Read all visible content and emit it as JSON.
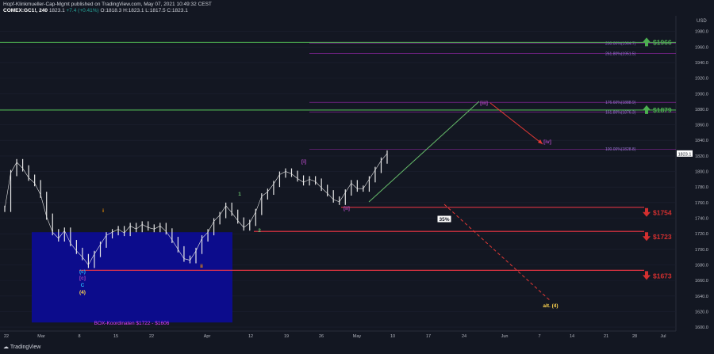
{
  "header": {
    "line1": "Hopf-Klinkmueller-Cap-Mgmt published on TradingView.com, May 07, 2021 10:49:32 CEST",
    "symbol": "COMEX:GC1!, 240",
    "last": "1823.1",
    "change": "+7.4 (+0.41%)",
    "open": "O:1818.3",
    "high": "H:1823.1",
    "low": "L:1817.5",
    "close": "C:1823.1"
  },
  "logo": "TradingView",
  "colors": {
    "background": "#131722",
    "candle": "#e6e6e6",
    "resistance": "#4caf50",
    "support": "#f23645",
    "box": "#0c0c8c",
    "fib": "#9c27b0",
    "wave_label": "#ab47bc",
    "up_arrow": "#4caf50",
    "down_arrow": "#d32f2f"
  },
  "chart_data": {
    "type": "line",
    "yaxis": {
      "unit": "USD",
      "ylim": [
        1595,
        2000
      ],
      "ticks": [
        1980,
        1960,
        1940,
        1920,
        1900,
        1880,
        1860,
        1840,
        1820,
        1800,
        1780,
        1760,
        1740,
        1720,
        1700,
        1680,
        1660,
        1640,
        1620,
        1600
      ]
    },
    "xaxis": {
      "tick_labels": [
        "22",
        "Mar",
        "8",
        "15",
        "22",
        "Apr",
        "12",
        "19",
        "26",
        "May",
        "10",
        "17",
        "24",
        "Jun",
        "7",
        "14",
        "21",
        "28",
        "Jul"
      ]
    },
    "last_price_label": "1823.1",
    "series": [
      {
        "values": [
          1752,
          1798,
          1812,
          1804,
          1792,
          1785,
          1770,
          1742,
          1722,
          1714,
          1724,
          1708,
          1698,
          1690,
          1680,
          1694,
          1706,
          1718,
          1722,
          1726,
          1721,
          1730,
          1726,
          1732,
          1728,
          1726,
          1730,
          1723,
          1712,
          1700,
          1688,
          1686,
          1698,
          1714,
          1722,
          1736,
          1744,
          1756,
          1747,
          1737,
          1728,
          1734,
          1748,
          1768,
          1774,
          1784,
          1796,
          1800,
          1797,
          1791,
          1786,
          1790,
          1787,
          1779,
          1772,
          1764,
          1761,
          1773,
          1785,
          1778,
          1778,
          1790,
          1802,
          1814,
          1823.1
        ]
      }
    ],
    "horizontal_lines": [
      {
        "value": 1966,
        "label": "$1966",
        "kind": "resistance"
      },
      {
        "value": 1879,
        "label": "$1879",
        "kind": "resistance"
      },
      {
        "value": 1754,
        "label": "$1754",
        "kind": "support"
      },
      {
        "value": 1723,
        "label": "$1723",
        "kind": "support"
      },
      {
        "value": 1673,
        "label": "$1673",
        "kind": "support"
      }
    ],
    "fib_levels": [
      {
        "value": 1964.7,
        "label": "200.00%(1964.7)"
      },
      {
        "value": 1951.5,
        "label": "261.80%(1951.5)"
      },
      {
        "value": 1888.9,
        "label": "176.60%(1888.9)"
      },
      {
        "value": 1876.3,
        "label": "161.80%(1876.3)"
      },
      {
        "value": 1828.8,
        "label": "100.00%(1828.8)"
      }
    ],
    "box": {
      "label": "BOX-Koordinaten $1722 - $1606",
      "top": 1722,
      "bottom": 1606
    },
    "wave_labels": [
      "(c)",
      "[c]",
      "C",
      "(4)",
      "i",
      "ii",
      "1",
      "2",
      "[i]",
      "[ii]",
      "[iii]",
      "[iv]",
      "alt. (4)"
    ],
    "annotation": "35%"
  }
}
